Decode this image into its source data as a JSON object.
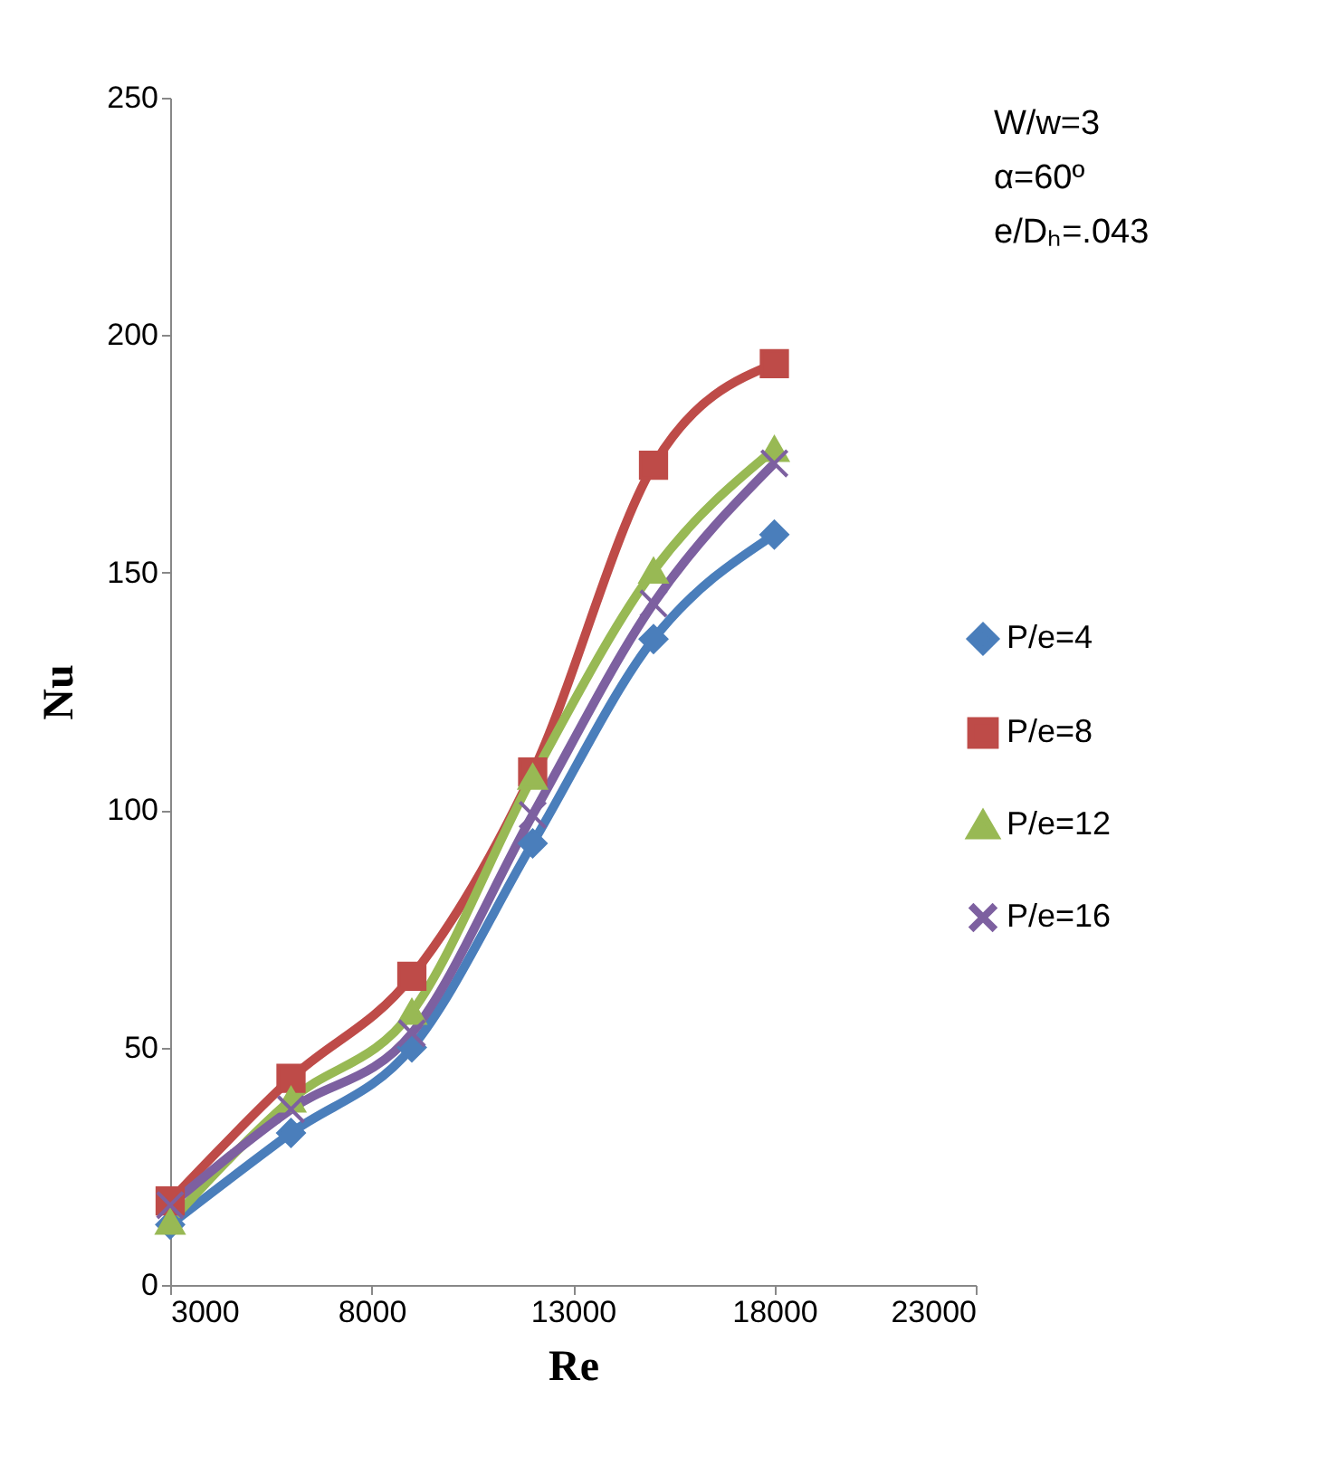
{
  "chart_data": {
    "type": "line",
    "xlabel": "Re",
    "ylabel": "Nu",
    "x": [
      3000,
      6000,
      9000,
      12000,
      15000,
      18000
    ],
    "xlim": [
      3000,
      23000
    ],
    "xticks": [
      3000,
      8000,
      13000,
      18000,
      23000
    ],
    "ylim": [
      0,
      250
    ],
    "yticks": [
      0,
      50,
      100,
      150,
      200,
      250
    ],
    "grid": false,
    "legend": "right",
    "annotations": [
      "W/w=3",
      "α=60º",
      "e/Dₕ=.043"
    ],
    "series": [
      {
        "name": "P/e=4",
        "color": "#4a7ebb",
        "marker": "diamond",
        "values": [
          12.7,
          32,
          50,
          93,
          136,
          158
        ]
      },
      {
        "name": "P/e=8",
        "color": "#be4b48",
        "marker": "square",
        "values": [
          17.7,
          43.5,
          65,
          108,
          172.6,
          194
        ]
      },
      {
        "name": "P/e=12",
        "color": "#98b954",
        "marker": "triangle",
        "values": [
          13.3,
          39,
          57.5,
          107,
          150.4,
          176
        ]
      },
      {
        "name": "P/e=16",
        "color": "#7d60a0",
        "marker": "cross",
        "values": [
          16.8,
          37,
          53,
          99,
          143.5,
          173
        ]
      }
    ]
  }
}
